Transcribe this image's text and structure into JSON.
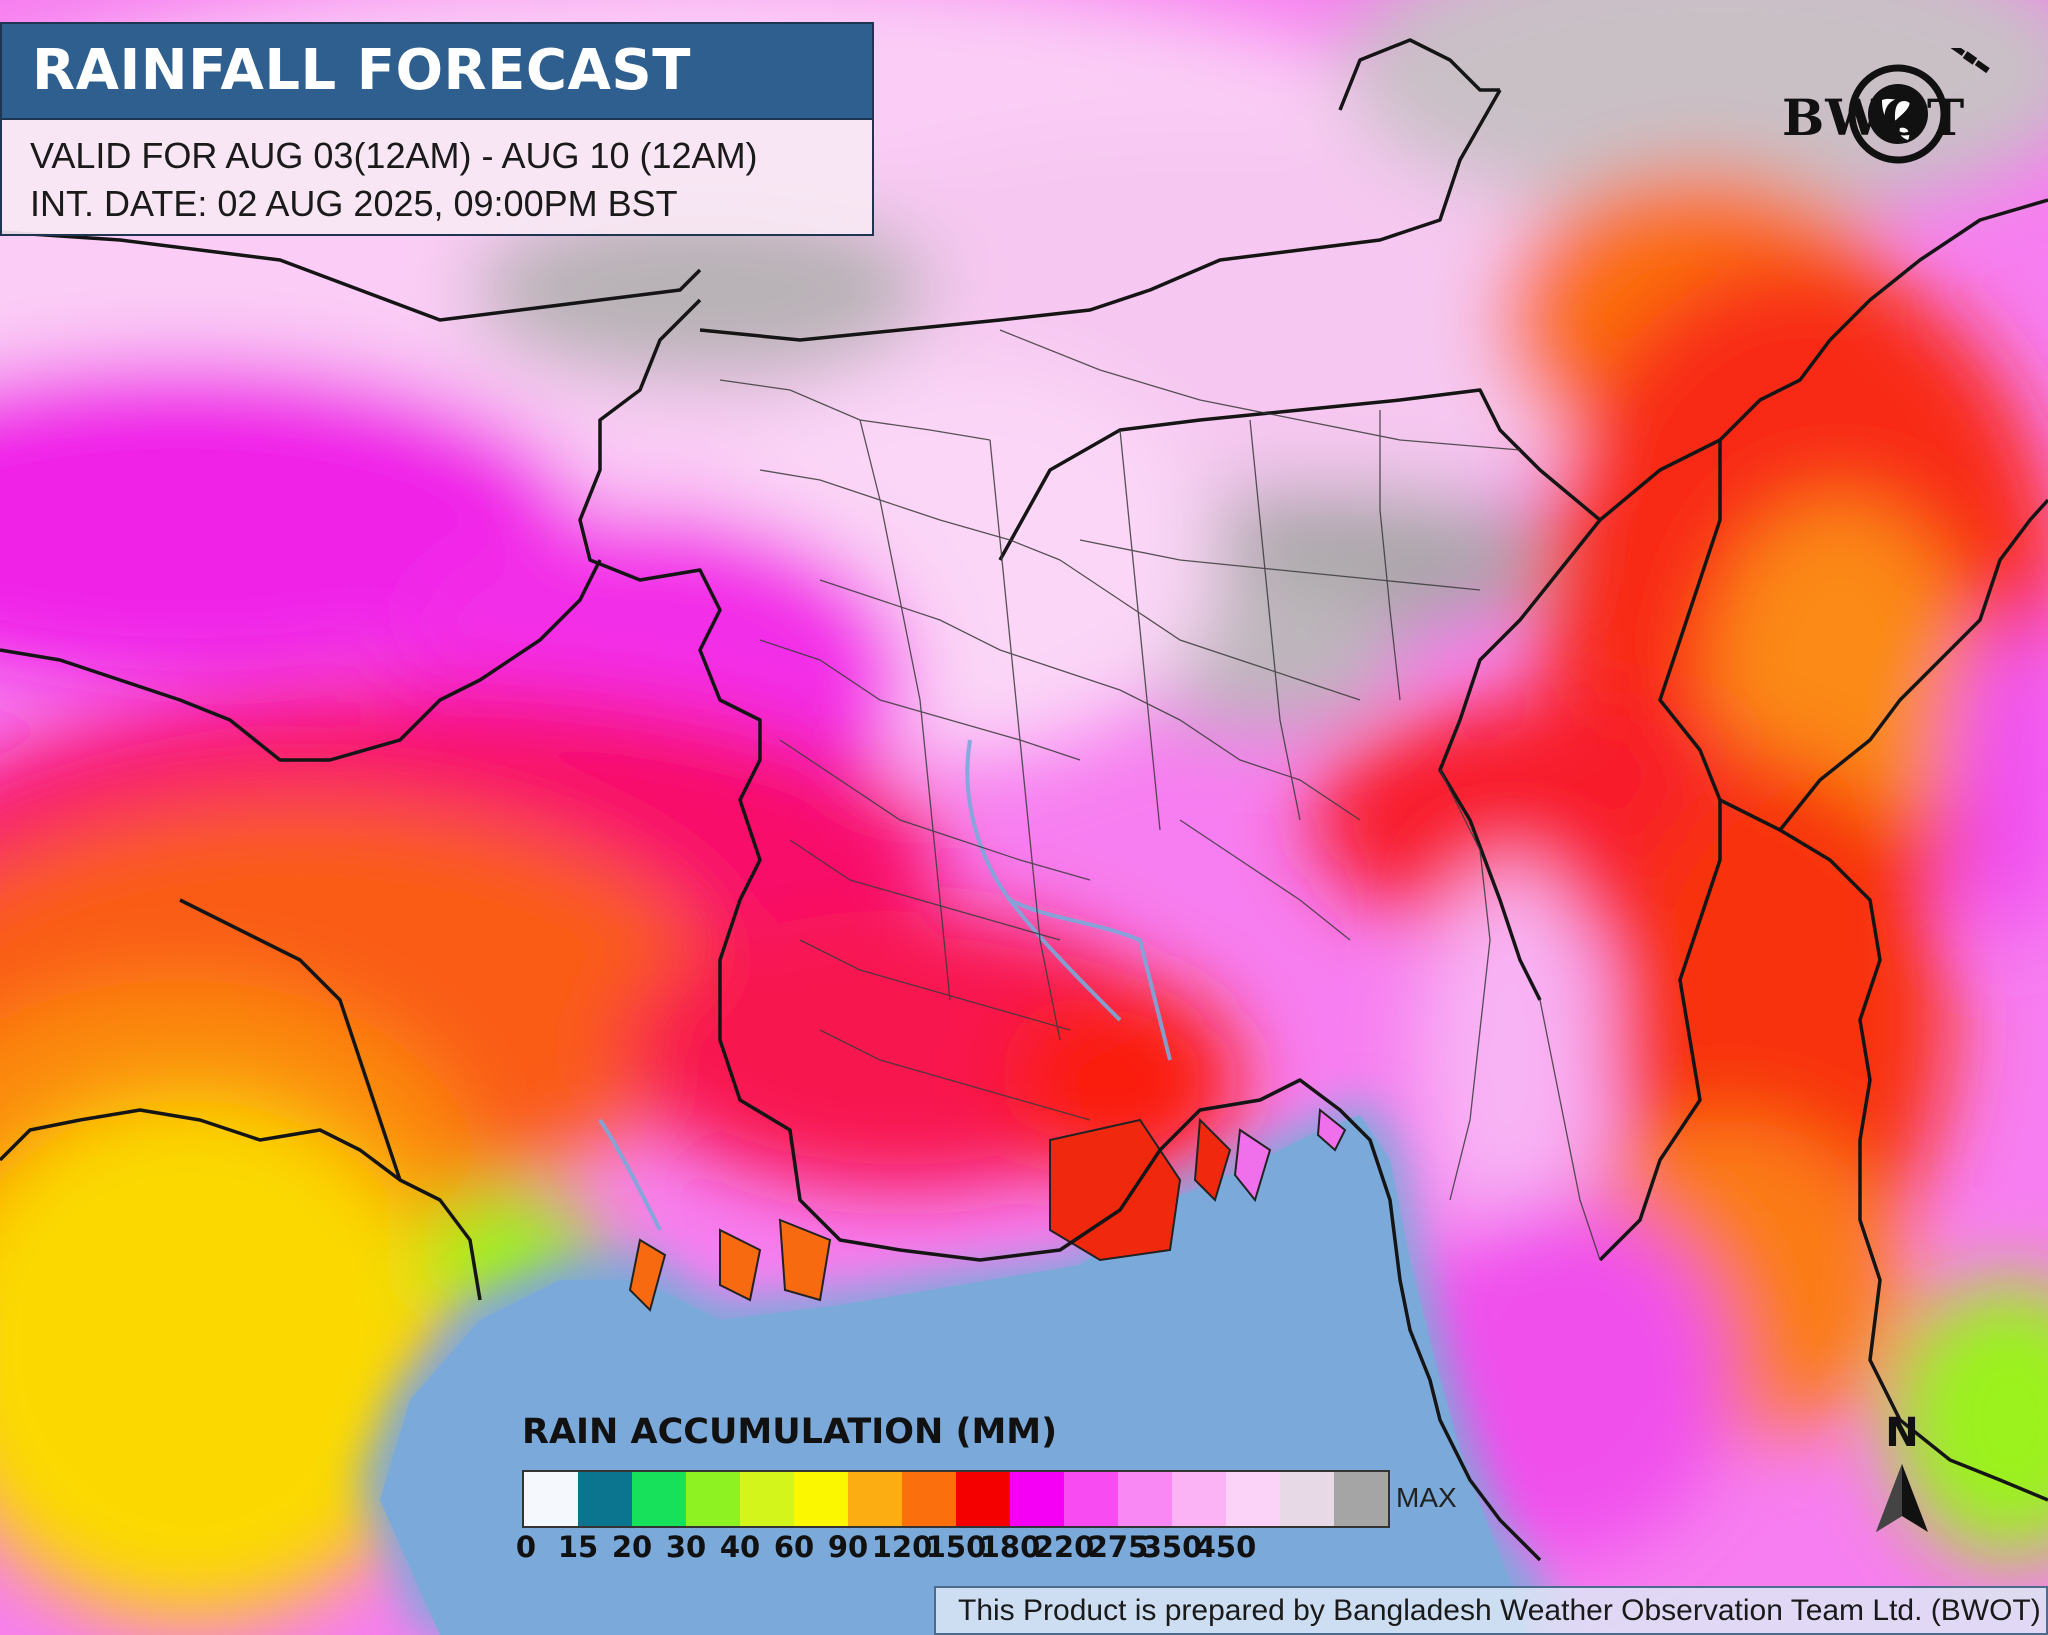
{
  "header": {
    "title": "RAINFALL FORECAST",
    "valid_line": "VALID FOR AUG 03(12AM) - AUG 10 (12AM)",
    "issue_line": "INT. DATE: 02 AUG 2025, 09:00PM BST"
  },
  "logo": {
    "text": "BWOT",
    "icon": "globe-satellite-icon"
  },
  "legend": {
    "title": "RAIN ACCUMULATION (MM)",
    "max_label": "MAX",
    "swatches": [
      "#f5f8fc",
      "#0b7590",
      "#17e05a",
      "#8ef121",
      "#d3f51c",
      "#fbf700",
      "#fbad12",
      "#fb6f0c",
      "#f50000",
      "#f500f5",
      "#f84cf2",
      "#fa88f4",
      "#fbb3f6",
      "#fbd2f8",
      "#e8d9e6",
      "#a5a5a5"
    ],
    "ticks": [
      "0",
      "15",
      "20",
      "30",
      "40",
      "60",
      "90",
      "120",
      "150",
      "180",
      "220",
      "275",
      "350",
      "450"
    ]
  },
  "north": {
    "label": "N",
    "icon": "north-arrow-icon"
  },
  "footer": {
    "text": "This Product is prepared by Bangladesh Weather Observation Team Ltd. (BWOT)"
  },
  "map": {
    "sea_color": "#7aa9da",
    "icon": "rainfall-map"
  }
}
